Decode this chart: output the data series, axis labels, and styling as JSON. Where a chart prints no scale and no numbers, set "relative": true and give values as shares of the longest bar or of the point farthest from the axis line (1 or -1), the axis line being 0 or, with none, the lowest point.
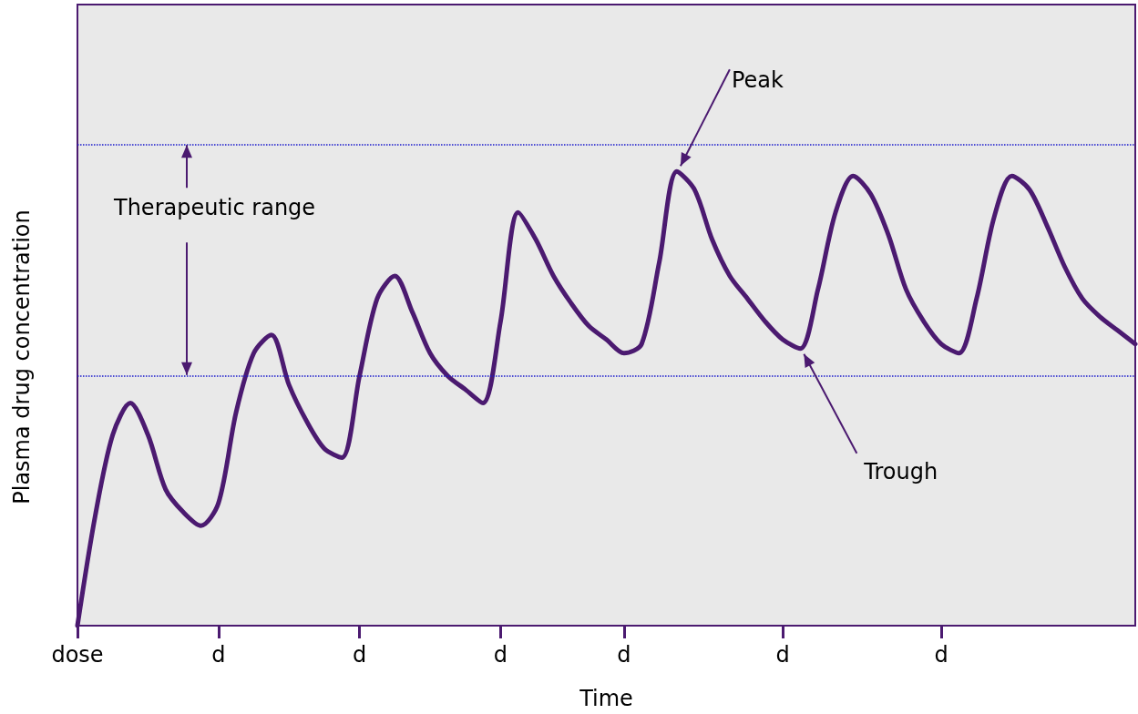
{
  "chart_data": {
    "type": "line",
    "relative": true,
    "xlabel": "Time",
    "ylabel": "Plasma drug concentration",
    "categories": [
      "dose",
      null,
      null,
      null,
      null,
      null,
      null,
      null,
      "d",
      null,
      null,
      null,
      null,
      null,
      null,
      null,
      "d",
      null,
      null,
      null,
      null,
      null,
      null,
      null,
      "d",
      null,
      null,
      null,
      null,
      null,
      null,
      "d",
      null,
      null,
      null,
      null,
      null,
      null,
      null,
      null,
      "d",
      null,
      null,
      null,
      null,
      null,
      null,
      null,
      null,
      "d",
      null,
      null,
      null,
      null,
      null,
      null,
      null,
      null,
      null,
      null,
      null
    ],
    "series": [
      {
        "color": "#4b1a70",
        "values": [
          0,
          0.24,
          0.42,
          0.49,
          0.42,
          0.3,
          0.25,
          0.22,
          0.27,
          0.47,
          0.6,
          0.64,
          0.53,
          0.45,
          0.39,
          0.37,
          0.55,
          0.72,
          0.77,
          0.69,
          0.6,
          0.55,
          0.52,
          0.49,
          0.67,
          0.91,
          0.85,
          0.77,
          0.71,
          0.66,
          0.63,
          0.6,
          0.62,
          0.8,
          1,
          0.96,
          0.85,
          0.77,
          0.72,
          0.67,
          0.63,
          0.61,
          0.74,
          0.91,
          0.99,
          0.95,
          0.86,
          0.74,
          0.67,
          0.62,
          0.6,
          0.72,
          0.9,
          0.99,
          0.96,
          0.88,
          0.79,
          0.72,
          0.68,
          0.65,
          0.62
        ]
      }
    ],
    "ref_lines": [
      {
        "axis": "y",
        "value": 1.06,
        "color": "#1a1acc",
        "line_style": "dotted"
      },
      {
        "axis": "y",
        "value": 0.55,
        "color": "#1a1acc",
        "line_style": "dotted"
      }
    ],
    "annotations": [
      "Therapeutic range",
      "Peak",
      "Trough"
    ],
    "marker": "none",
    "line_style": "solid",
    "grid": false
  }
}
